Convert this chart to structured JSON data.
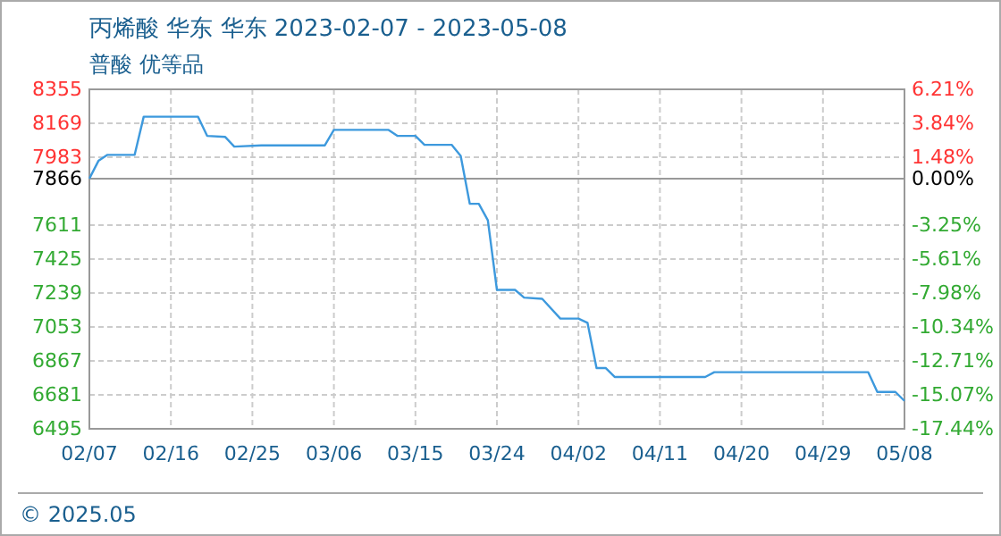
{
  "chart_data": {
    "type": "line",
    "title": "丙烯酸 华东 华东 2023-02-07 - 2023-05-08",
    "subtitle": "普酸 优等品",
    "x": [
      "2023-02-07",
      "2023-02-08",
      "2023-02-09",
      "2023-02-12",
      "2023-02-13",
      "2023-02-19",
      "2023-02-20",
      "2023-02-22",
      "2023-02-23",
      "2023-02-26",
      "2023-03-05",
      "2023-03-06",
      "2023-03-12",
      "2023-03-13",
      "2023-03-15",
      "2023-03-16",
      "2023-03-19",
      "2023-03-20",
      "2023-03-21",
      "2023-03-22",
      "2023-03-23",
      "2023-03-24",
      "2023-03-26",
      "2023-03-27",
      "2023-03-29",
      "2023-03-31",
      "2023-04-02",
      "2023-04-03",
      "2023-04-04",
      "2023-04-05",
      "2023-04-06",
      "2023-04-16",
      "2023-04-17",
      "2023-05-04",
      "2023-05-05",
      "2023-05-07",
      "2023-05-08"
    ],
    "series": [
      {
        "color": "#3d99dd",
        "values": [
          7866,
          7963,
          7996,
          7996,
          8205,
          8205,
          8100,
          8094,
          8041,
          8048,
          8048,
          8133,
          8133,
          8100,
          8100,
          8051,
          8051,
          7990,
          7728,
          7728,
          7637,
          7256,
          7256,
          7214,
          7207,
          7099,
          7099,
          7076,
          6828,
          6828,
          6779,
          6779,
          6805,
          6805,
          6697,
          6697,
          6648
        ]
      }
    ],
    "xlim": [
      "2023-02-07",
      "2023-05-08"
    ],
    "xticks": [
      {
        "value": "2023-02-07",
        "label": "02/07"
      },
      {
        "value": "2023-02-16",
        "label": "02/16"
      },
      {
        "value": "2023-02-25",
        "label": "02/25"
      },
      {
        "value": "2023-03-06",
        "label": "03/06"
      },
      {
        "value": "2023-03-15",
        "label": "03/15"
      },
      {
        "value": "2023-03-24",
        "label": "03/24"
      },
      {
        "value": "2023-04-02",
        "label": "04/02"
      },
      {
        "value": "2023-04-11",
        "label": "04/11"
      },
      {
        "value": "2023-04-20",
        "label": "04/20"
      },
      {
        "value": "2023-04-29",
        "label": "04/29"
      },
      {
        "value": "2023-05-08",
        "label": "05/08"
      }
    ],
    "ylim": [
      6495,
      8355
    ],
    "yticks": [
      6495,
      6681,
      6867,
      7053,
      7239,
      7425,
      7611,
      7866,
      7983,
      8169,
      8355
    ],
    "y2lim": [
      -17.44,
      6.21
    ],
    "y2ticks": [
      {
        "value": -17.44,
        "label": "-17.44%"
      },
      {
        "value": -15.07,
        "label": "-15.07%"
      },
      {
        "value": -12.71,
        "label": "-12.71%"
      },
      {
        "value": -10.34,
        "label": "-10.34%"
      },
      {
        "value": -7.98,
        "label": "-7.98%"
      },
      {
        "value": -5.61,
        "label": "-5.61%"
      },
      {
        "value": -3.25,
        "label": "-3.25%"
      },
      {
        "value": 0,
        "label": "0.00%"
      },
      {
        "value": 1.48,
        "label": "1.48%"
      },
      {
        "value": 3.84,
        "label": "3.84%"
      },
      {
        "value": 6.21,
        "label": "6.21%"
      }
    ],
    "ref_lines": [
      {
        "axis": "y",
        "value": 7866,
        "color": "#999999"
      }
    ],
    "grid": true,
    "marker": "none",
    "line_style": "solid",
    "annotations": [
      "© 2025.05"
    ]
  }
}
